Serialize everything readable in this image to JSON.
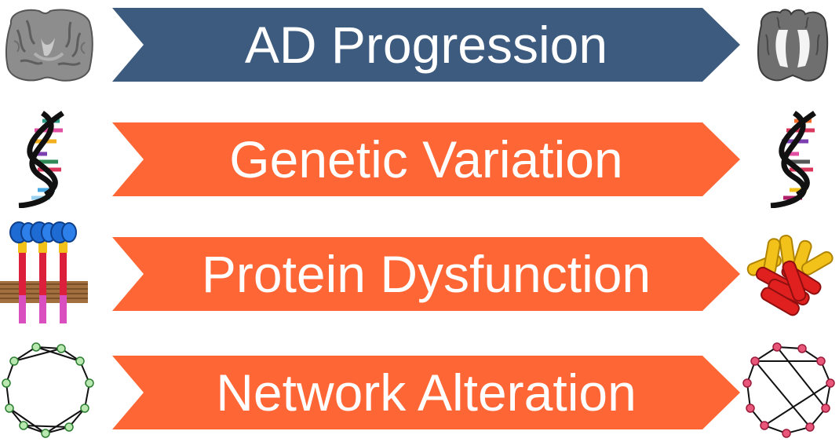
{
  "colors": {
    "progression_arrow": "#3d5b7e",
    "mechanism_arrow": "#fe6735",
    "label_text": "#ffffff",
    "healthy_node": "#b9e7b0",
    "diseased_node": "#e8567a",
    "membrane": "#a2703f",
    "receptor_stalk": "#dc1f3a",
    "receptor_domain": "#1f6bd4",
    "aggregate_yellow": "#f2c21b",
    "aggregate_red": "#e0201e"
  },
  "rows": [
    {
      "label": "AD Progression",
      "left_icon": "healthy-brain-section-icon",
      "right_icon": "atrophied-brain-section-icon"
    },
    {
      "label": "Genetic Variation",
      "left_icon": "dna-double-helix-icon",
      "right_icon": "variant-dna-double-helix-icon"
    },
    {
      "label": "Protein Dysfunction",
      "left_icon": "membrane-receptors-icon",
      "right_icon": "protein-aggregate-icon"
    },
    {
      "label": "Network Alteration",
      "left_icon": "healthy-network-icon",
      "right_icon": "altered-network-icon"
    }
  ]
}
